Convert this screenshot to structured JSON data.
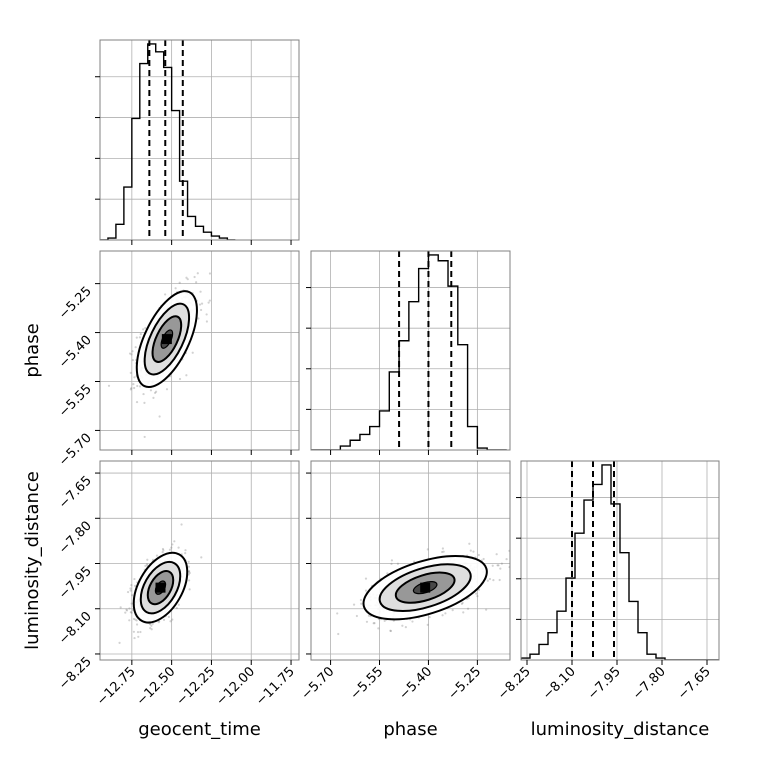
{
  "chart_data": {
    "type": "corner",
    "parameters": [
      "geocent_time",
      "phase",
      "luminosity_distance"
    ],
    "axis_labels": {
      "geocent_time": "geocent_time",
      "phase": "phase",
      "luminosity_distance": "luminosity_distance"
    },
    "ranges": {
      "geocent_time": [
        -12.95,
        -11.7
      ],
      "phase": [
        -5.76,
        -5.15
      ],
      "luminosity_distance": [
        -8.27,
        -7.61
      ]
    },
    "ticks": {
      "geocent_time": [
        {
          "value": -12.75,
          "label": "−12.75"
        },
        {
          "value": -12.5,
          "label": "−12.50"
        },
        {
          "value": -12.25,
          "label": "−12.25"
        },
        {
          "value": -12.0,
          "label": "−12.00"
        },
        {
          "value": -11.75,
          "label": "−11.75"
        }
      ],
      "phase": [
        {
          "value": -5.7,
          "label": "−5.70"
        },
        {
          "value": -5.55,
          "label": "−5.55"
        },
        {
          "value": -5.4,
          "label": "−5.40"
        },
        {
          "value": -5.25,
          "label": "−5.25"
        }
      ],
      "luminosity_distance": [
        {
          "value": -8.25,
          "label": "−8.25"
        },
        {
          "value": -8.1,
          "label": "−8.10"
        },
        {
          "value": -7.95,
          "label": "−7.95"
        },
        {
          "value": -7.8,
          "label": "−7.80"
        },
        {
          "value": -7.65,
          "label": "−7.65"
        }
      ]
    },
    "histograms": {
      "geocent_time": {
        "bin_edges": [
          -12.95,
          -12.9,
          -12.85,
          -12.8,
          -12.75,
          -12.7,
          -12.65,
          -12.6,
          -12.55,
          -12.5,
          -12.45,
          -12.4,
          -12.35,
          -12.3,
          -12.25,
          -12.2,
          -12.15,
          -12.1
        ],
        "counts": [
          0,
          1,
          8,
          27,
          62,
          90,
          100,
          96,
          88,
          66,
          30,
          12,
          7,
          4,
          2,
          1,
          0
        ],
        "quantiles": [
          -12.64,
          -12.54,
          -12.43
        ]
      },
      "phase": {
        "bin_edges": [
          -5.76,
          -5.73,
          -5.7,
          -5.67,
          -5.64,
          -5.61,
          -5.58,
          -5.55,
          -5.52,
          -5.49,
          -5.46,
          -5.43,
          -5.4,
          -5.37,
          -5.34,
          -5.31,
          -5.28,
          -5.25,
          -5.22,
          -5.19,
          -5.16
        ],
        "counts": [
          0,
          0,
          0,
          2,
          5,
          8,
          12,
          20,
          40,
          56,
          76,
          93,
          100,
          97,
          84,
          54,
          12,
          1,
          0,
          0
        ],
        "quantiles": [
          -5.49,
          -5.4,
          -5.33
        ]
      },
      "luminosity_distance": {
        "bin_edges": [
          -8.27,
          -8.24,
          -8.21,
          -8.18,
          -8.15,
          -8.12,
          -8.09,
          -8.06,
          -8.03,
          -8.0,
          -7.97,
          -7.94,
          -7.91,
          -7.88,
          -7.85,
          -7.82,
          -7.79,
          -7.76,
          -7.73,
          -7.7,
          -7.67,
          -7.64,
          -7.61
        ],
        "counts": [
          1,
          3,
          8,
          14,
          25,
          42,
          65,
          82,
          90,
          100,
          80,
          55,
          30,
          14,
          3,
          1,
          0,
          0,
          0,
          0,
          0,
          0
        ],
        "quantiles": [
          -8.1,
          -8.03,
          -7.96
        ]
      }
    },
    "scatter_2d": [
      {
        "x": "geocent_time",
        "y": "phase",
        "center": [
          -12.53,
          -5.42
        ],
        "spread": [
          0.09,
          0.07
        ],
        "correlation": 0.6,
        "n": 700
      },
      {
        "x": "geocent_time",
        "y": "luminosity_distance",
        "center": [
          -12.57,
          -8.03
        ],
        "spread": [
          0.08,
          0.055
        ],
        "correlation": 0.45,
        "n": 700
      },
      {
        "x": "phase",
        "y": "luminosity_distance",
        "center": [
          -5.41,
          -8.03
        ],
        "spread": [
          0.09,
          0.05
        ],
        "correlation": 0.5,
        "n": 700
      }
    ],
    "contour_levels": [
      0.4,
      1.0,
      1.55,
      2.1
    ],
    "grid": true,
    "colors": {
      "line": "#000000",
      "scatter": "#7f7f7f",
      "grid": "#b0b0b0",
      "frame": "#808080"
    }
  }
}
